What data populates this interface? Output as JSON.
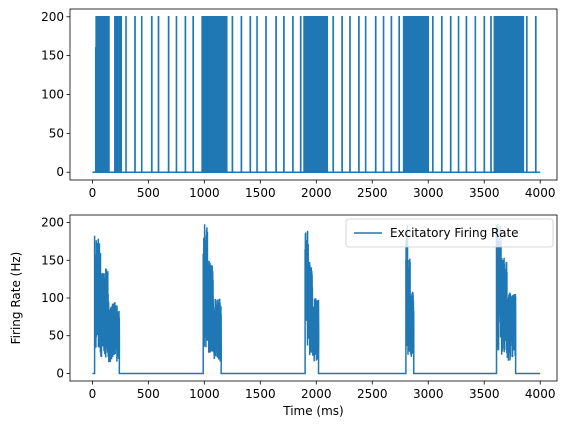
{
  "chart_data": [
    {
      "type": "line",
      "title": "",
      "xlabel": "",
      "ylabel": "",
      "xlim": [
        -200,
        4150
      ],
      "ylim": [
        -10,
        210
      ],
      "xticks": [
        0,
        500,
        1000,
        1500,
        2000,
        2500,
        3000,
        3500,
        4000
      ],
      "yticks": [
        0,
        50,
        100,
        150,
        200
      ],
      "grid": false,
      "legend": null,
      "series": [
        {
          "color": "#1f77b4",
          "description": "Square-pulse trace alternating between 0 and 200; dense bursts around 30-150, 1000-1200, 1900-2100, 2800-3000, 3600-3850; sparse single pulses between bursts",
          "low": 0,
          "high": 200,
          "bursts": [
            {
              "start": 30,
              "end": 150,
              "peaks": [
                160,
                200
              ]
            },
            {
              "start": 200,
              "end": 260,
              "peaks": [
                200
              ]
            },
            {
              "start": 980,
              "end": 1200,
              "peaks": [
                200
              ]
            },
            {
              "start": 1890,
              "end": 2100,
              "peaks": [
                200
              ]
            },
            {
              "start": 2780,
              "end": 3000,
              "peaks": [
                200
              ]
            },
            {
              "start": 3590,
              "end": 3850,
              "peaks": [
                200
              ]
            }
          ],
          "single_pulses": [
            300,
            380,
            440,
            530,
            590,
            680,
            750,
            830,
            900,
            1250,
            1330,
            1410,
            1470,
            1550,
            1640,
            1710,
            1790,
            1860,
            2150,
            2230,
            2300,
            2380,
            2440,
            2530,
            2600,
            2670,
            2740,
            3040,
            3120,
            3200,
            3270,
            3340,
            3420,
            3500,
            3560,
            3880,
            3960
          ]
        }
      ]
    },
    {
      "type": "line",
      "title": "",
      "xlabel": "Time (ms)",
      "ylabel": "Firing Rate (Hz)",
      "xlim": [
        -200,
        4150
      ],
      "ylim": [
        -10,
        210
      ],
      "xticks": [
        0,
        500,
        1000,
        1500,
        2000,
        2500,
        3000,
        3500,
        4000
      ],
      "yticks": [
        0,
        50,
        100,
        150,
        200
      ],
      "grid": false,
      "legend": "top-right",
      "series": [
        {
          "name": "Excitatory Firing Rate",
          "color": "#1f77b4",
          "baseline": 0,
          "bursts": [
            {
              "start": 20,
              "end": 240,
              "peak": 185,
              "sustain": 95
            },
            {
              "start": 990,
              "end": 1150,
              "peak": 200,
              "sustain": 100
            },
            {
              "start": 1900,
              "end": 2020,
              "peak": 200,
              "sustain": 100
            },
            {
              "start": 2800,
              "end": 2870,
              "peak": 200,
              "sustain": 110
            },
            {
              "start": 3610,
              "end": 3780,
              "peak": 200,
              "sustain": 110
            }
          ]
        }
      ]
    }
  ]
}
